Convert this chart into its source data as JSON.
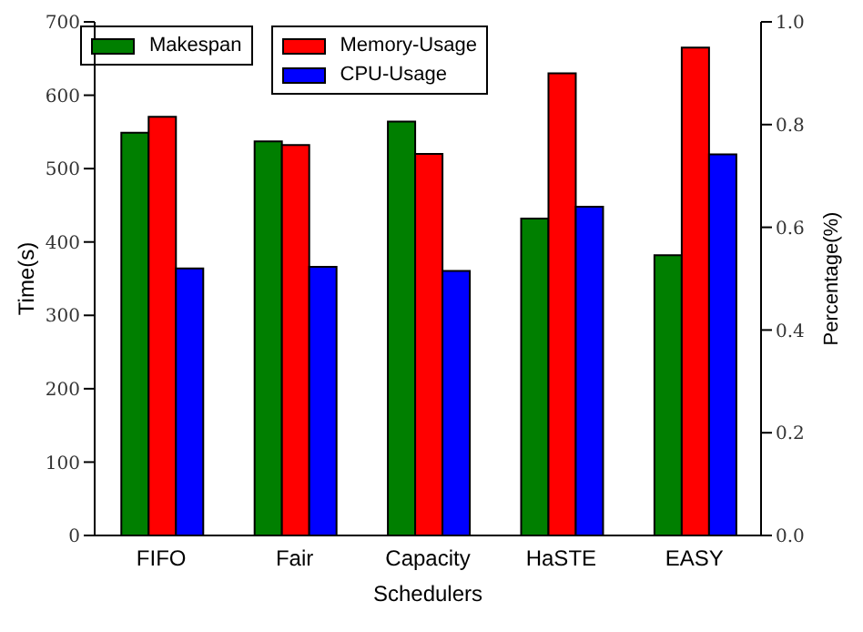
{
  "chart_data": {
    "type": "bar",
    "xlabel": "Schedulers",
    "ylabel": "Time(s)",
    "y2label": "Percentage(%)",
    "categories": [
      "FIFO",
      "Fair",
      "Capacity",
      "HaSTE",
      "EASY"
    ],
    "series": [
      {
        "name": "Makespan",
        "color": "#007f00",
        "values": [
          549,
          537,
          564,
          432,
          382
        ]
      },
      {
        "name": "Memory-Usage",
        "color": "#ff0000",
        "axis": "y2",
        "values": [
          0.815,
          0.76,
          0.743,
          0.9,
          0.95
        ]
      },
      {
        "name": "CPU-Usage",
        "color": "#0000ff",
        "axis": "y2",
        "values": [
          0.52,
          0.523,
          0.515,
          0.64,
          0.742
        ]
      }
    ],
    "ylim": [
      0,
      700
    ],
    "yticks": [
      0,
      100,
      200,
      300,
      400,
      500,
      600,
      700
    ],
    "y2lim": [
      0,
      1.0
    ],
    "y2ticks": [
      {
        "value": 0,
        "label": "0.0"
      },
      {
        "value": 0.2,
        "label": "0.2"
      },
      {
        "value": 0.4,
        "label": "0.4"
      },
      {
        "value": 0.6,
        "label": "0.6"
      },
      {
        "value": 0.8,
        "label": "0.8"
      },
      {
        "value": 1.0,
        "label": "1.0"
      }
    ],
    "grid": false,
    "legend": "top"
  }
}
